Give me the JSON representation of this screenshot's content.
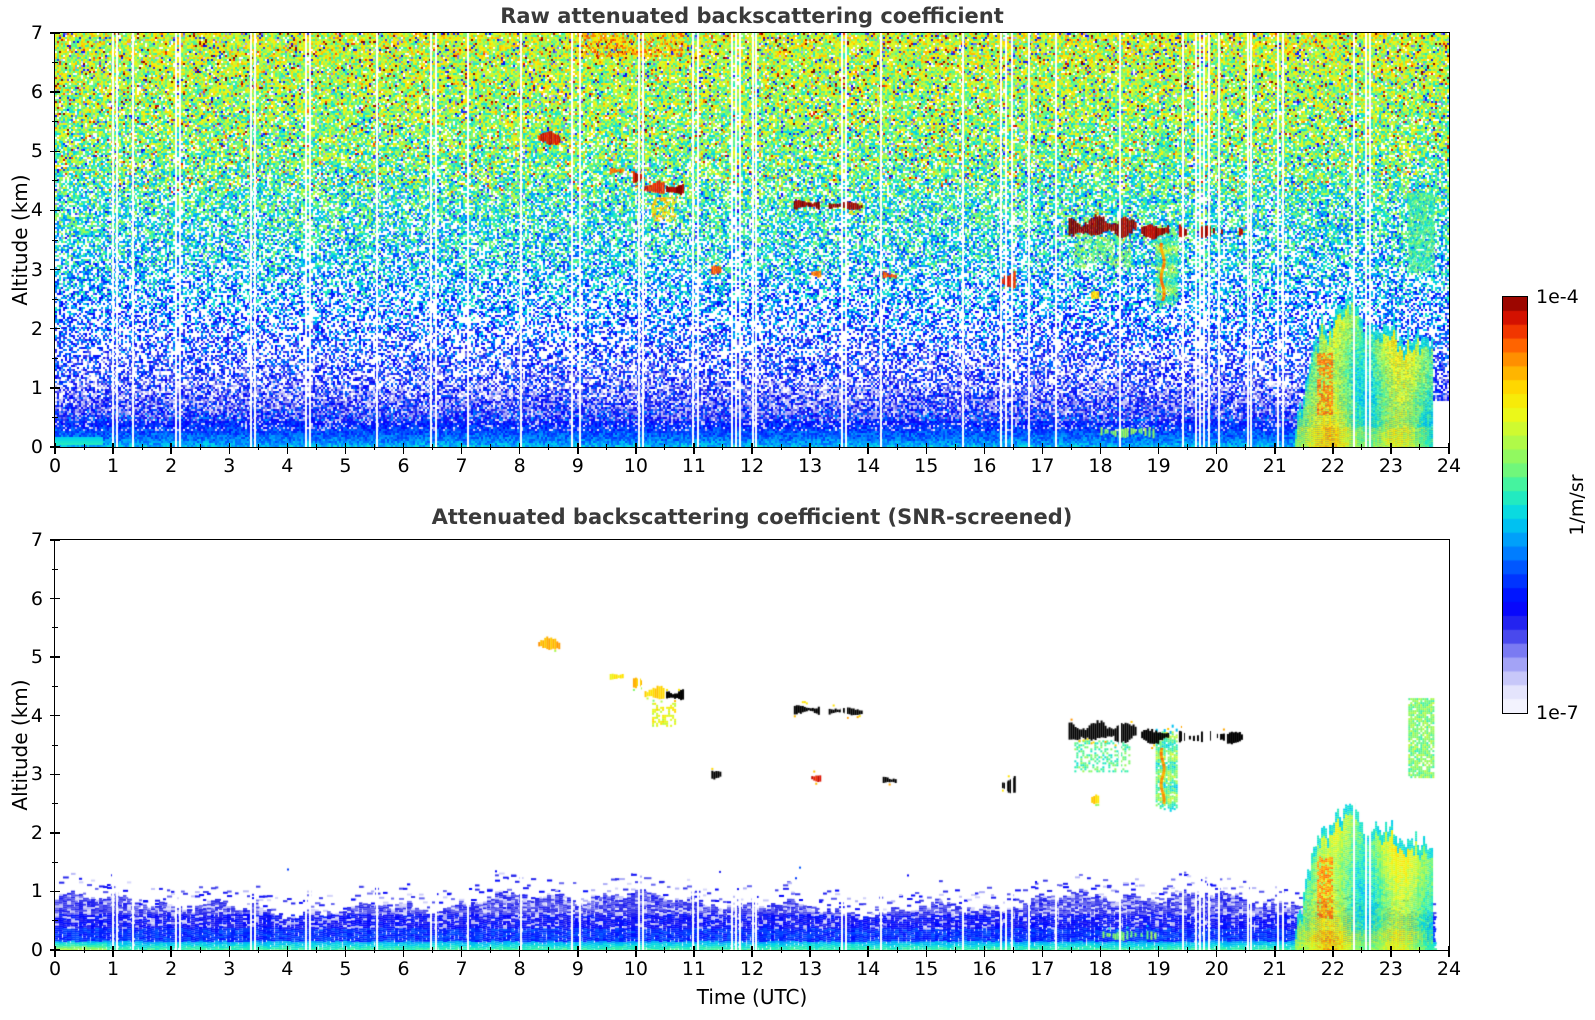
{
  "plots": [
    {
      "title": "Raw attenuated backscattering coefficient",
      "ylabel": "Altitude (km)"
    },
    {
      "title": "Attenuated backscattering coefficient (SNR-screened)",
      "ylabel": "Altitude (km)",
      "xlabel": "Time (UTC)"
    }
  ],
  "colorbar": {
    "top_label": "1e-4",
    "bottom_label": "1e-7",
    "unit": "1/m/sr",
    "n_bands": 30
  },
  "chart_data": {
    "type": "heatmap",
    "panels": [
      {
        "mode": "raw",
        "title": "Raw attenuated backscattering coefficient"
      },
      {
        "mode": "screened",
        "title": "Attenuated backscattering coefficient (SNR-screened)"
      }
    ],
    "x": {
      "label": "Time (UTC)",
      "range": [
        0,
        24
      ],
      "ticks": [
        0,
        1,
        2,
        3,
        4,
        5,
        6,
        7,
        8,
        9,
        10,
        11,
        12,
        13,
        14,
        15,
        16,
        17,
        18,
        19,
        20,
        21,
        22,
        23,
        24
      ]
    },
    "y": {
      "label": "Altitude (km)",
      "range": [
        0,
        7
      ],
      "ticks": [
        0,
        1,
        2,
        3,
        4,
        5,
        6,
        7
      ]
    },
    "z": {
      "label": "1/m/sr",
      "scale": "log",
      "min": 1e-07,
      "max": 0.0001
    },
    "data_end_utc": 23.72,
    "data_gaps_utc": [
      0.98,
      1.05,
      1.33,
      2.06,
      2.14,
      3.36,
      3.43,
      4.31,
      4.38,
      5.53,
      6.45,
      6.55,
      7.1,
      8.0,
      8.88,
      9.02,
      10.03,
      10.1,
      10.96,
      11.05,
      11.63,
      11.7,
      11.78,
      12.0,
      12.06,
      13.53,
      13.6,
      14.2,
      15.62,
      16.27,
      16.35,
      16.46,
      16.76,
      17.22,
      18.32,
      19.4,
      19.62,
      19.69,
      19.77,
      19.85,
      20.02,
      20.52,
      20.58,
      21.04,
      21.12,
      22.34,
      22.56,
      22.63
    ],
    "noise_profile_raw": [
      [
        0,
        0.46,
        1
      ],
      [
        0.06,
        0.42,
        1
      ],
      [
        0.14,
        0.38,
        1
      ],
      [
        0.3,
        0.33,
        1
      ],
      [
        0.55,
        0.25,
        1
      ],
      [
        0.8,
        0.21,
        0.9
      ],
      [
        1.1,
        0.23,
        0.62
      ],
      [
        1.6,
        0.28,
        0.47
      ],
      [
        2.2,
        0.36,
        0.5
      ],
      [
        3.0,
        0.45,
        0.6
      ],
      [
        4.0,
        0.52,
        0.72
      ],
      [
        5.0,
        0.59,
        0.85
      ],
      [
        6.0,
        0.64,
        0.92
      ],
      [
        7.0,
        0.68,
        0.96
      ]
    ],
    "boundary_layer": {
      "top_mean": 0.8,
      "wave_amp": 0.13,
      "pale_fraction": 0.22,
      "surface_cyan_t1": 0.85,
      "bands": [
        [
          0.62,
          0.19
        ],
        [
          0.38,
          0.25
        ],
        [
          0.16,
          0.31
        ],
        [
          0.0,
          0.42
        ]
      ]
    },
    "plume": {
      "t0": 21.35,
      "t1": 23.72,
      "body_v": 0.62,
      "hot": {
        "t0": 21.72,
        "t1": 21.98,
        "a0": 0.55,
        "a1": 1.6,
        "v": 0.84
      },
      "envelope": [
        [
          21.35,
          0.3
        ],
        [
          21.48,
          0.9
        ],
        [
          21.6,
          1.5
        ],
        [
          21.72,
          1.9
        ],
        [
          21.83,
          2.15
        ],
        [
          21.93,
          1.95
        ],
        [
          22.05,
          2.4
        ],
        [
          22.17,
          2.35
        ],
        [
          22.3,
          2.55
        ],
        [
          22.42,
          2.4
        ],
        [
          22.52,
          1.95
        ],
        [
          22.65,
          2.1
        ],
        [
          22.8,
          2.0
        ],
        [
          22.95,
          2.15
        ],
        [
          23.08,
          1.95
        ],
        [
          23.2,
          1.75
        ],
        [
          23.35,
          1.9
        ],
        [
          23.5,
          1.85
        ],
        [
          23.62,
          1.9
        ],
        [
          23.72,
          1.55
        ]
      ]
    },
    "features": [
      {
        "kind": "hot_noise",
        "t0": 8.8,
        "t1": 10.8,
        "a0": 6.6,
        "a1": 7.0,
        "v_raw": 0.78,
        "v_scr": 0
      },
      {
        "kind": "virga",
        "t0": 10.28,
        "t1": 10.68,
        "a0": 3.82,
        "a1": 4.22,
        "v_raw": 0.78,
        "v_scr": 0.72
      },
      {
        "kind": "virga",
        "t0": 17.55,
        "t1": 18.5,
        "a0": 3.05,
        "a1": 3.58,
        "v_raw": 0.6,
        "v_scr": 0.56
      },
      {
        "kind": "patch",
        "t0": 23.3,
        "t1": 23.72,
        "a0": 2.95,
        "a1": 4.3,
        "v_raw": 0.55,
        "v_scr": 0.6
      },
      {
        "kind": "column",
        "t0": 18.95,
        "t1": 19.32,
        "a0": 2.42,
        "a1": 3.7,
        "v_raw": 0.58,
        "v_scr": 0.58
      },
      {
        "kind": "streak",
        "t0": 19.02,
        "t1": 19.12,
        "a0": 2.5,
        "a1": 3.45,
        "v_raw": 0.85,
        "v_scr": 0.85
      },
      {
        "kind": "dashes",
        "t0": 19.35,
        "t1": 20.45,
        "a0": 3.55,
        "a1": 3.72,
        "v_raw": 0.97,
        "v_scr": 1.08
      },
      {
        "kind": "dashes",
        "t0": 18.0,
        "t1": 18.95,
        "a0": 0.18,
        "a1": 0.32,
        "v_raw": 0.62,
        "v_scr": 0.6
      },
      {
        "kind": "cloud",
        "t0": 8.32,
        "t1": 8.68,
        "a0": 5.12,
        "a1": 5.3,
        "v_raw": 0.94,
        "v_scr": 0.82
      },
      {
        "kind": "cloud",
        "t0": 9.55,
        "t1": 9.78,
        "a0": 4.6,
        "a1": 4.72,
        "v_raw": 0.88,
        "v_scr": 0.75
      },
      {
        "kind": "cloud",
        "t0": 9.95,
        "t1": 10.12,
        "a0": 4.5,
        "a1": 4.66,
        "v_raw": 0.95,
        "v_scr": 0.8
      },
      {
        "kind": "cloud",
        "t0": 10.15,
        "t1": 10.48,
        "a0": 4.28,
        "a1": 4.46,
        "v_raw": 0.92,
        "v_scr": 0.78
      },
      {
        "kind": "cloud",
        "t0": 10.52,
        "t1": 10.82,
        "a0": 4.28,
        "a1": 4.45,
        "v_raw": 0.99,
        "v_scr": 1.08
      },
      {
        "kind": "cloud",
        "t0": 12.72,
        "t1": 13.15,
        "a0": 4.03,
        "a1": 4.16,
        "v_raw": 0.99,
        "v_scr": 1.08
      },
      {
        "kind": "cloud",
        "t0": 13.32,
        "t1": 13.9,
        "a0": 4.02,
        "a1": 4.13,
        "v_raw": 0.99,
        "v_scr": 1.08
      },
      {
        "kind": "cloud",
        "t0": 17.45,
        "t1": 18.62,
        "a0": 3.58,
        "a1": 3.86,
        "v_raw": 0.99,
        "v_scr": 1.08
      },
      {
        "kind": "cloud",
        "t0": 18.7,
        "t1": 19.18,
        "a0": 3.55,
        "a1": 3.76,
        "v_raw": 0.98,
        "v_scr": 1.08
      },
      {
        "kind": "dot",
        "t0": 11.3,
        "t1": 11.44,
        "a0": 2.94,
        "a1": 3.06,
        "v_raw": 0.9,
        "v_scr": 1.08
      },
      {
        "kind": "dot",
        "t0": 13.02,
        "t1": 13.18,
        "a0": 2.88,
        "a1": 2.99,
        "v_raw": 0.85,
        "v_scr": 0.95
      },
      {
        "kind": "dot",
        "t0": 14.25,
        "t1": 14.48,
        "a0": 2.84,
        "a1": 2.96,
        "v_raw": 0.9,
        "v_scr": 1.08
      },
      {
        "kind": "dot",
        "t0": 16.3,
        "t1": 16.52,
        "a0": 2.72,
        "a1": 2.95,
        "v_raw": 0.92,
        "v_scr": 1.08
      },
      {
        "kind": "dot",
        "t0": 17.84,
        "t1": 17.96,
        "a0": 2.5,
        "a1": 2.62,
        "v_raw": 0.78,
        "v_scr": 0.78
      }
    ],
    "colormap_stops": [
      [
        0.0,
        [
          250,
          250,
          255
        ]
      ],
      [
        0.05,
        [
          228,
          228,
          252
        ]
      ],
      [
        0.1,
        [
          184,
          184,
          248
        ]
      ],
      [
        0.15,
        [
          122,
          122,
          242
        ]
      ],
      [
        0.2,
        [
          48,
          48,
          234
        ]
      ],
      [
        0.26,
        [
          0,
          0,
          255
        ]
      ],
      [
        0.33,
        [
          0,
          64,
          255
        ]
      ],
      [
        0.4,
        [
          0,
          144,
          255
        ]
      ],
      [
        0.47,
        [
          0,
          212,
          236
        ]
      ],
      [
        0.53,
        [
          44,
          240,
          180
        ]
      ],
      [
        0.59,
        [
          120,
          248,
          116
        ]
      ],
      [
        0.65,
        [
          176,
          250,
          72
        ]
      ],
      [
        0.71,
        [
          232,
          250,
          28
        ]
      ],
      [
        0.77,
        [
          255,
          228,
          0
        ]
      ],
      [
        0.83,
        [
          255,
          168,
          0
        ]
      ],
      [
        0.89,
        [
          255,
          92,
          0
        ]
      ],
      [
        0.94,
        [
          228,
          20,
          0
        ]
      ],
      [
        1.0,
        [
          128,
          0,
          0
        ]
      ]
    ]
  }
}
